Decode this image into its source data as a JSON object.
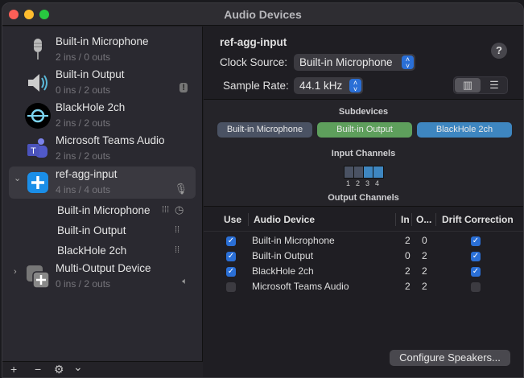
{
  "window": {
    "title": "Audio Devices"
  },
  "sidebar": {
    "devices": [
      {
        "name": "Built-in Microphone",
        "io": "2 ins / 0 outs",
        "icon": "microphone-icon"
      },
      {
        "name": "Built-in Output",
        "io": "0 ins / 2 outs",
        "icon": "speaker-icon",
        "badge": "alert-icon"
      },
      {
        "name": "BlackHole 2ch",
        "io": "2 ins / 2 outs",
        "icon": "blackhole-icon"
      },
      {
        "name": "Microsoft Teams Audio",
        "io": "2 ins / 2 outs",
        "icon": "teams-icon"
      },
      {
        "name": "ref-agg-input",
        "io": "4 ins / 4 outs",
        "icon": "aggregate-device-icon",
        "badge": "mic-default-icon",
        "expanded": true,
        "selected": true,
        "children": [
          {
            "name": "Built-in Microphone",
            "badges": [
              "waveform-icon",
              "clock-icon"
            ]
          },
          {
            "name": "Built-in Output",
            "badges": [
              "waveform-icon"
            ]
          },
          {
            "name": "BlackHole 2ch",
            "badges": [
              "waveform-icon"
            ]
          }
        ]
      },
      {
        "name": "Multi-Output Device",
        "io": "0 ins / 2 outs",
        "icon": "multi-output-icon",
        "badge": "speaker-default-icon",
        "expanded": false
      }
    ],
    "toolbar": {
      "add": "+",
      "remove": "−",
      "settings": "⚙",
      "menu": "⌄"
    }
  },
  "detail": {
    "title": "ref-agg-input",
    "clock_source_label": "Clock Source:",
    "clock_source": "Built-in Microphone",
    "sample_rate_label": "Sample Rate:",
    "sample_rate": "44.1 kHz",
    "help": "?",
    "subdevices_label": "Subdevices",
    "subdevices": [
      {
        "name": "Built-in Microphone",
        "color": "#4a5263"
      },
      {
        "name": "Built-in Output",
        "color": "#5e9f5c"
      },
      {
        "name": "BlackHole 2ch",
        "color": "#3e86c0"
      }
    ],
    "input_channels_label": "Input Channels",
    "input_channels": [
      "1",
      "2",
      "3",
      "4"
    ],
    "output_channels_label": "Output Channels",
    "table": {
      "headers": [
        "Use",
        "Audio Device",
        "In",
        "O...",
        "Drift Correction"
      ],
      "rows": [
        {
          "use": true,
          "device": "Built-in Microphone",
          "in": "2",
          "out": "0",
          "drift": true
        },
        {
          "use": true,
          "device": "Built-in Output",
          "in": "0",
          "out": "2",
          "drift": true
        },
        {
          "use": true,
          "device": "BlackHole 2ch",
          "in": "2",
          "out": "2",
          "drift": true
        },
        {
          "use": false,
          "device": "Microsoft Teams Audio",
          "in": "2",
          "out": "2",
          "drift": false
        }
      ]
    },
    "configure_speakers": "Configure Speakers..."
  }
}
